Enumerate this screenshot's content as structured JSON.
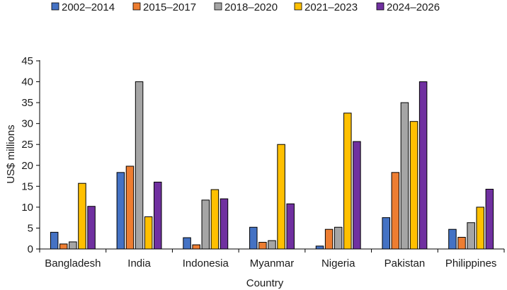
{
  "chart_data": {
    "type": "bar",
    "title": "",
    "xlabel": "Country",
    "ylabel": "US$ millions",
    "ylim": [
      0,
      45
    ],
    "yticks": [
      0,
      5,
      10,
      15,
      20,
      25,
      30,
      35,
      40,
      45
    ],
    "grid": false,
    "legend_position": "top",
    "categories": [
      "Bangladesh",
      "India",
      "Indonesia",
      "Myanmar",
      "Nigeria",
      "Pakistan",
      "Philippines"
    ],
    "series": [
      {
        "name": "2002–2014",
        "color": "#4472C4",
        "values": [
          4.0,
          18.3,
          2.7,
          5.2,
          0.7,
          7.5,
          4.7
        ]
      },
      {
        "name": "2015–2017",
        "color": "#ED7D31",
        "values": [
          1.2,
          19.8,
          1.0,
          1.6,
          4.7,
          18.3,
          2.8
        ]
      },
      {
        "name": "2018–2020",
        "color": "#A5A5A5",
        "values": [
          1.7,
          40.0,
          11.7,
          2.0,
          5.2,
          35.0,
          6.3
        ]
      },
      {
        "name": "2021–2023",
        "color": "#FFC000",
        "values": [
          15.7,
          7.7,
          14.2,
          25.0,
          32.5,
          30.5,
          10.0
        ]
      },
      {
        "name": "2024–2026",
        "color": "#7030A0",
        "values": [
          10.2,
          16.0,
          12.0,
          10.8,
          25.7,
          40.0,
          14.3
        ]
      }
    ]
  }
}
